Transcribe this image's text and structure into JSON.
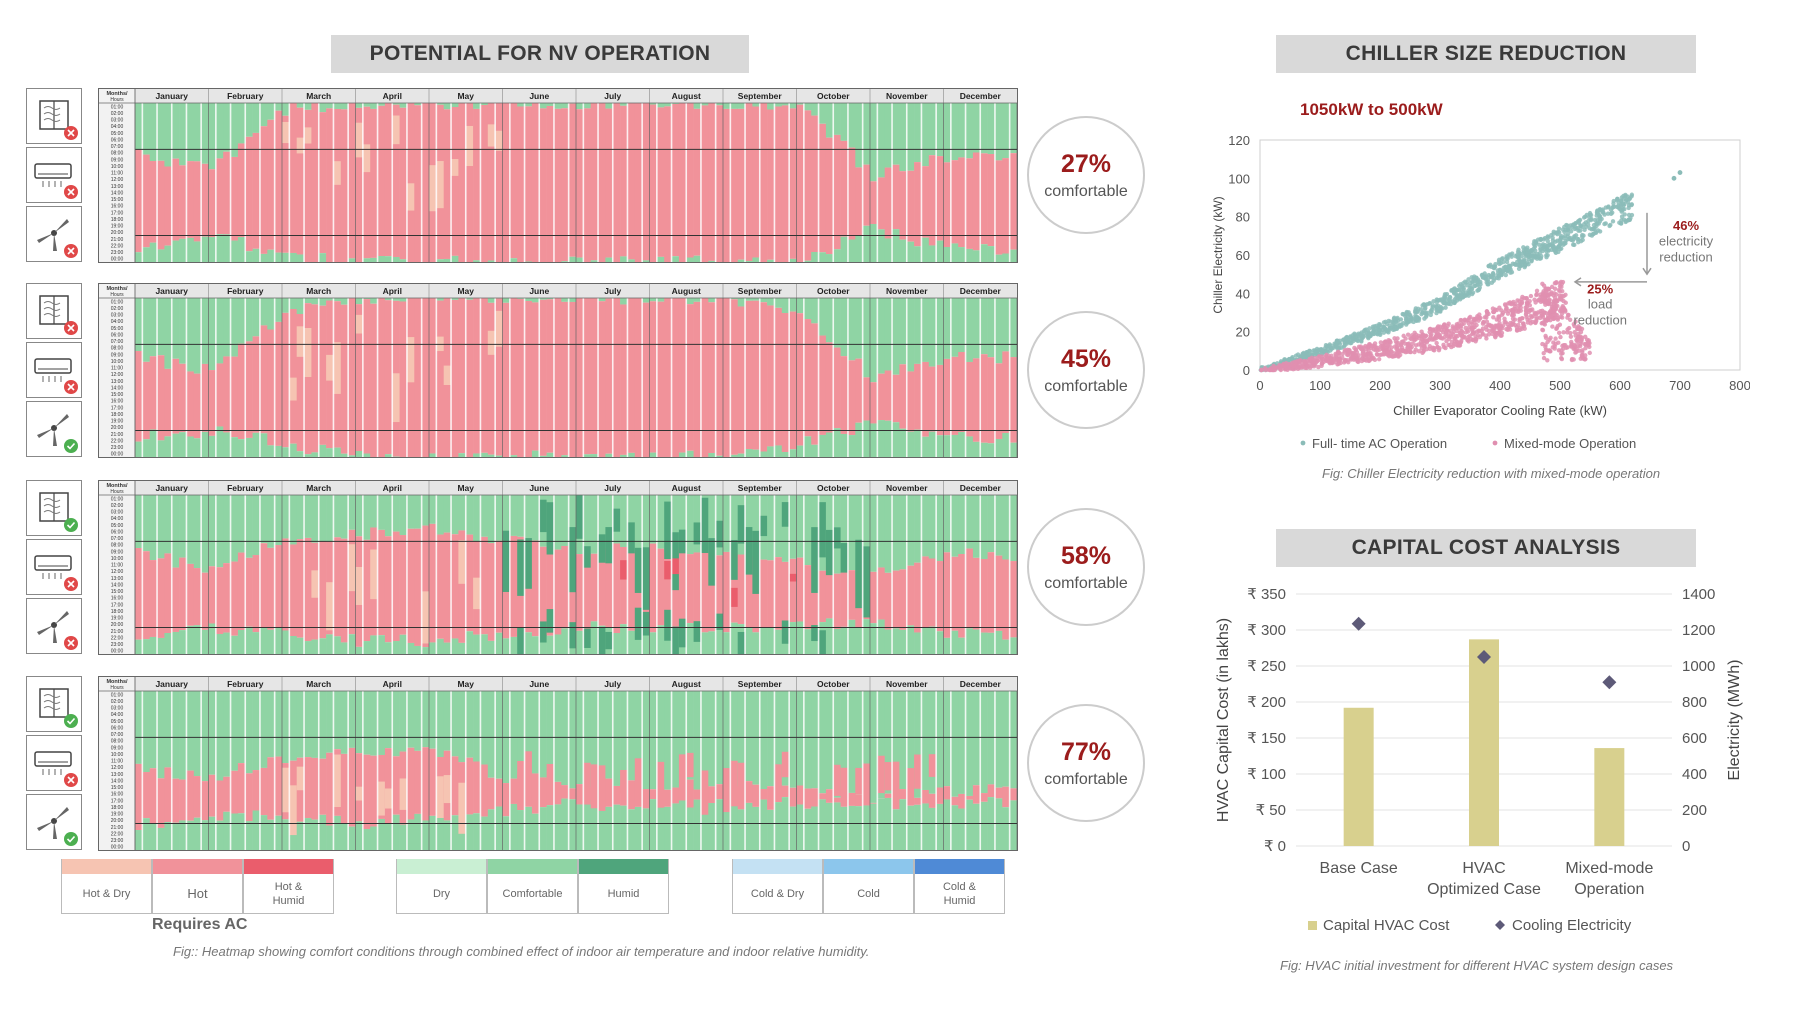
{
  "left": {
    "title": "POTENTIAL FOR NV OPERATION",
    "header_corner": [
      "Months/",
      "Hours"
    ],
    "months": [
      "January",
      "February",
      "March",
      "April",
      "May",
      "June",
      "July",
      "August",
      "September",
      "October",
      "November",
      "December"
    ],
    "hours": [
      "01:00",
      "02:00",
      "03:00",
      "04:00",
      "05:00",
      "06:00",
      "07:00",
      "08:00",
      "09:00",
      "10:00",
      "11:00",
      "12:00",
      "13:00",
      "14:00",
      "15:00",
      "16:00",
      "17:00",
      "18:00",
      "19:00",
      "20:00",
      "21:00",
      "22:00",
      "23:00",
      "00:00"
    ],
    "heatmaps": [
      {
        "percent": "27%",
        "label": "comfortable",
        "window": "cross",
        "ac": "cross",
        "fan": "cross"
      },
      {
        "percent": "45%",
        "label": "comfortable",
        "window": "cross",
        "ac": "cross",
        "fan": "check"
      },
      {
        "percent": "58%",
        "label": "comfortable",
        "window": "check",
        "ac": "cross",
        "fan": "cross"
      },
      {
        "percent": "77%",
        "label": "comfortable",
        "window": "check",
        "ac": "cross",
        "fan": "check"
      }
    ],
    "legend": [
      {
        "label": "Hot & Dry",
        "color": "#f6c4b2"
      },
      {
        "label": "Hot",
        "color": "#f1929a"
      },
      {
        "label": "Hot & Humid",
        "color": "#ea5d6c"
      },
      {
        "label": "Dry",
        "color": "#c9efd3"
      },
      {
        "label": "Comfortable",
        "color": "#8fd4a4"
      },
      {
        "label": "Humid",
        "color": "#4fa57c"
      },
      {
        "label": "Cold & Dry",
        "color": "#c4e1f3"
      },
      {
        "label": "Cold",
        "color": "#8cc6ec"
      },
      {
        "label": "Cold & Humid",
        "color": "#4f8ad6"
      }
    ],
    "requires_ac": "Requires AC",
    "caption": "Fig:: Heatmap showing comfort conditions through combined effect of indoor air temperature and indoor relative humidity."
  },
  "chiller": {
    "title": "CHILLER SIZE REDUCTION",
    "annotation": "1050kW to 500kW",
    "electricity_reduction": {
      "value": "46%",
      "text": [
        "electricity",
        "reduction"
      ]
    },
    "load_reduction": {
      "value": "25%",
      "text": [
        "load",
        "reduction"
      ]
    },
    "legend": [
      "Full- time AC Operation",
      "Mixed-mode Operation"
    ],
    "caption": "Fig:  Chiller Electricity reduction with mixed-mode operation",
    "colors": {
      "full": "#8bbcb8",
      "mixed": "#e08fb0",
      "accent": "#9b1c1c"
    }
  },
  "capital": {
    "title": "CAPITAL COST ANALYSIS",
    "legend": [
      "Capital HVAC Cost",
      "Cooling Electricity"
    ],
    "caption": "Fig: HVAC initial investment for different HVAC system design cases",
    "colors": {
      "bar": "#d8d08e",
      "marker": "#5d5a78"
    }
  },
  "chart_data": [
    {
      "type": "scatter",
      "title": "CHILLER SIZE REDUCTION",
      "xlabel": "Chiller Evaporator Cooling Rate (kW)",
      "ylabel": "Chiller Electricity (kW)",
      "xlim": [
        0,
        800
      ],
      "ylim": [
        0,
        120
      ],
      "xticks": [
        0,
        100,
        200,
        300,
        400,
        500,
        600,
        700,
        800
      ],
      "yticks": [
        0,
        20,
        40,
        60,
        80,
        100,
        120
      ],
      "grid": false,
      "legend_position": "bottom",
      "series": [
        {
          "name": "Full- time AC Operation",
          "trend": [
            [
              0,
              0
            ],
            [
              100,
              10
            ],
            [
              200,
              21
            ],
            [
              300,
              34
            ],
            [
              400,
              53
            ],
            [
              500,
              68
            ],
            [
              600,
              84
            ]
          ],
          "outliers": [
            [
              690,
              100
            ],
            [
              700,
              103
            ]
          ],
          "max_x": 620
        },
        {
          "name": "Mixed-mode Operation",
          "trend": [
            [
              0,
              0
            ],
            [
              100,
              5
            ],
            [
              200,
              11
            ],
            [
              300,
              18
            ],
            [
              400,
              28
            ],
            [
              500,
              42
            ],
            [
              540,
              10
            ]
          ],
          "max_x": 550
        }
      ]
    },
    {
      "type": "bar",
      "title": "CAPITAL COST ANALYSIS",
      "categories": [
        [
          "Base Case"
        ],
        [
          "HVAC",
          "Optimized Case"
        ],
        [
          "Mixed-mode",
          "Operation"
        ]
      ],
      "ylabel": "HVAC Capital Cost (in lakhs)",
      "y2label": "Electricity (MWh)",
      "ylim": [
        0,
        350
      ],
      "y2lim": [
        0,
        1400
      ],
      "yticks": [
        "₹ 0",
        "₹ 50",
        "₹ 100",
        "₹ 150",
        "₹ 200",
        "₹ 250",
        "₹ 300",
        "₹ 350"
      ],
      "y2ticks": [
        0,
        200,
        400,
        600,
        800,
        1000,
        1200,
        1400
      ],
      "grid": true,
      "legend_position": "bottom",
      "series": [
        {
          "name": "Capital HVAC Cost",
          "axis": "left",
          "values": [
            192,
            287,
            136
          ]
        },
        {
          "name": "Cooling Electricity",
          "axis": "right",
          "values": [
            1235,
            1050,
            910
          ]
        }
      ]
    }
  ]
}
